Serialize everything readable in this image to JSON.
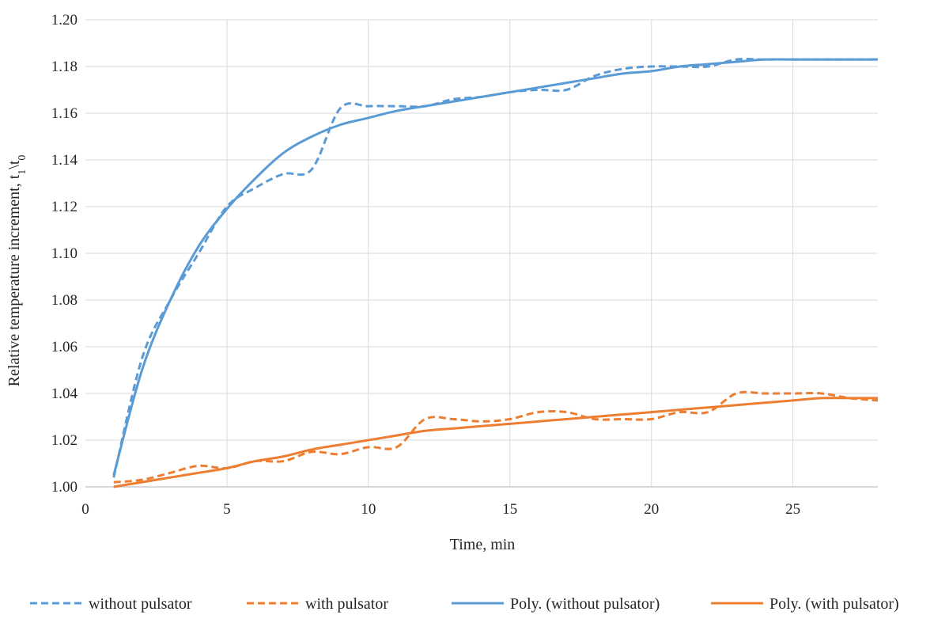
{
  "chart_data": {
    "type": "line",
    "xlabel": "Time, min",
    "ylabel_main": "Relative temperature increment, t",
    "ylabel_sub1": "1",
    "ylabel_mid": "\\t",
    "ylabel_sub2": "0",
    "xlim": [
      0,
      28
    ],
    "ylim": [
      1.0,
      1.2
    ],
    "x_ticks": [
      0,
      5,
      10,
      15,
      20,
      25
    ],
    "x_tick_labels": [
      "0",
      "5",
      "10",
      "15",
      "20",
      "25"
    ],
    "y_ticks": [
      1.0,
      1.02,
      1.04,
      1.06,
      1.08,
      1.1,
      1.12,
      1.14,
      1.16,
      1.18,
      1.2
    ],
    "y_tick_labels": [
      "1.00",
      "1.02",
      "1.04",
      "1.06",
      "1.08",
      "1.10",
      "1.12",
      "1.14",
      "1.16",
      "1.18",
      "1.20"
    ],
    "grid": true,
    "legend_position": "bottom",
    "series": [
      {
        "name": "without pulsator",
        "style": "dashed",
        "color": "#5b9bd5",
        "x": [
          1,
          2,
          3,
          4,
          5,
          6,
          7,
          8,
          9,
          10,
          11,
          12,
          13,
          14,
          15,
          16,
          17,
          18,
          19,
          20,
          21,
          22,
          23,
          24,
          25,
          26,
          27,
          28
        ],
        "y": [
          1.004,
          1.055,
          1.08,
          1.1,
          1.12,
          1.128,
          1.134,
          1.136,
          1.162,
          1.163,
          1.163,
          1.163,
          1.166,
          1.167,
          1.169,
          1.17,
          1.17,
          1.176,
          1.179,
          1.18,
          1.18,
          1.18,
          1.183,
          1.183,
          1.183,
          1.183,
          1.183,
          1.183
        ]
      },
      {
        "name": "with pulsator",
        "style": "dashed",
        "color": "#ed7d31",
        "x": [
          1,
          2,
          3,
          4,
          5,
          6,
          7,
          8,
          9,
          10,
          11,
          12,
          13,
          14,
          15,
          16,
          17,
          18,
          19,
          20,
          21,
          22,
          23,
          24,
          25,
          26,
          27,
          28
        ],
        "y": [
          1.002,
          1.003,
          1.006,
          1.009,
          1.008,
          1.011,
          1.011,
          1.015,
          1.014,
          1.017,
          1.017,
          1.029,
          1.029,
          1.028,
          1.029,
          1.032,
          1.032,
          1.029,
          1.029,
          1.029,
          1.032,
          1.032,
          1.04,
          1.04,
          1.04,
          1.04,
          1.038,
          1.037
        ]
      },
      {
        "name": "Poly. (without pulsator)",
        "style": "solid",
        "color": "#5b9bd5",
        "x": [
          1,
          2,
          3,
          4,
          5,
          6,
          7,
          8,
          9,
          10,
          11,
          12,
          13,
          14,
          15,
          16,
          17,
          18,
          19,
          20,
          21,
          22,
          23,
          24,
          25,
          26,
          27,
          28
        ],
        "y": [
          1.005,
          1.05,
          1.08,
          1.103,
          1.119,
          1.132,
          1.143,
          1.15,
          1.155,
          1.158,
          1.161,
          1.163,
          1.165,
          1.167,
          1.169,
          1.171,
          1.173,
          1.175,
          1.177,
          1.178,
          1.18,
          1.181,
          1.182,
          1.183,
          1.183,
          1.183,
          1.183,
          1.183
        ]
      },
      {
        "name": "Poly. (with pulsator)",
        "style": "solid",
        "color": "#ed7d31",
        "x": [
          1,
          2,
          3,
          4,
          5,
          6,
          7,
          8,
          9,
          10,
          11,
          12,
          13,
          14,
          15,
          16,
          17,
          18,
          19,
          20,
          21,
          22,
          23,
          24,
          25,
          26,
          27,
          28
        ],
        "y": [
          1.0,
          1.002,
          1.004,
          1.006,
          1.008,
          1.011,
          1.013,
          1.016,
          1.018,
          1.02,
          1.022,
          1.024,
          1.025,
          1.026,
          1.027,
          1.028,
          1.029,
          1.03,
          1.031,
          1.032,
          1.033,
          1.034,
          1.035,
          1.036,
          1.037,
          1.038,
          1.038,
          1.038
        ]
      }
    ]
  }
}
